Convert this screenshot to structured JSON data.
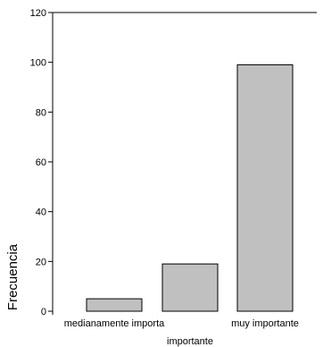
{
  "chart_data": {
    "type": "bar",
    "categories": [
      "medianamente importa",
      "importante",
      "muy importante"
    ],
    "values": [
      5,
      19,
      99
    ],
    "title": "",
    "xlabel": "",
    "ylabel": "Frecuencia",
    "ylim": [
      0,
      120
    ],
    "yticks": [
      0,
      20,
      40,
      60,
      80,
      100,
      120
    ],
    "grid": false,
    "bar_color": "#c0c0c0"
  }
}
